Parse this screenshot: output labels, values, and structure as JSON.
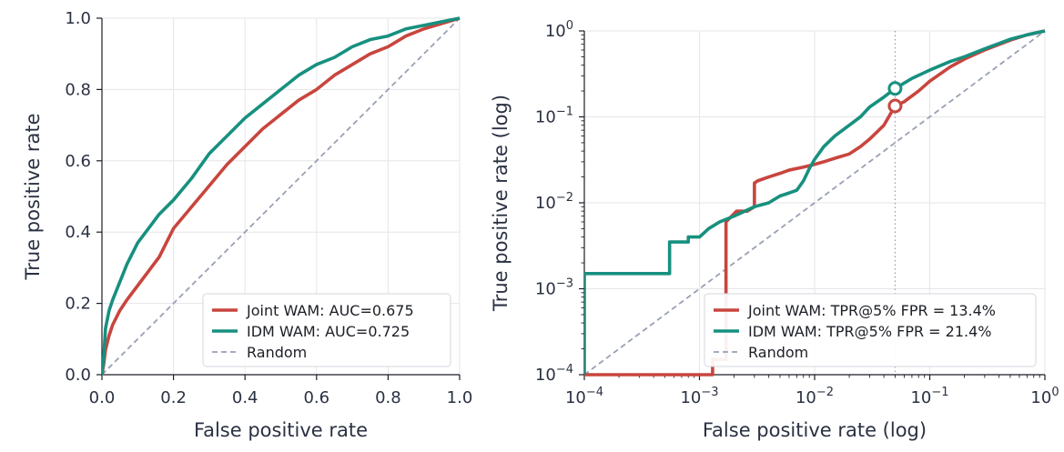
{
  "colors": {
    "joint": "#c8453e",
    "idm": "#17907f",
    "random": "#98a0b3",
    "marker_line": "#9aa0ad"
  },
  "chart_data": [
    {
      "type": "line",
      "scale": "linear",
      "xlabel": "False positive rate",
      "ylabel": "True positive rate",
      "xlim": [
        0,
        1
      ],
      "ylim": [
        0,
        1
      ],
      "xticks": [
        0,
        0.2,
        0.4,
        0.6,
        0.8,
        1.0
      ],
      "xtick_labels": [
        "0.0",
        "0.2",
        "0.4",
        "0.6",
        "0.8",
        "1.0"
      ],
      "yticks": [
        0,
        0.2,
        0.4,
        0.6,
        0.8,
        1.0
      ],
      "ytick_labels": [
        "0.0",
        "0.2",
        "0.4",
        "0.6",
        "0.8",
        "1.0"
      ],
      "grid": true,
      "legend_position": "bottom-right",
      "series": [
        {
          "key": "joint",
          "name": "Joint WAM: AUC=0.675",
          "x": [
            0,
            0.005,
            0.01,
            0.02,
            0.03,
            0.05,
            0.07,
            0.1,
            0.13,
            0.16,
            0.2,
            0.25,
            0.3,
            0.35,
            0.4,
            0.45,
            0.5,
            0.55,
            0.6,
            0.65,
            0.7,
            0.75,
            0.8,
            0.85,
            0.9,
            0.95,
            1.0
          ],
          "y": [
            0,
            0.03,
            0.07,
            0.11,
            0.14,
            0.18,
            0.21,
            0.25,
            0.29,
            0.33,
            0.41,
            0.47,
            0.53,
            0.59,
            0.64,
            0.69,
            0.73,
            0.77,
            0.8,
            0.84,
            0.87,
            0.9,
            0.92,
            0.95,
            0.97,
            0.985,
            1.0
          ]
        },
        {
          "key": "idm",
          "name": "IDM WAM: AUC=0.725",
          "x": [
            0,
            0.005,
            0.01,
            0.02,
            0.03,
            0.05,
            0.07,
            0.1,
            0.13,
            0.16,
            0.2,
            0.25,
            0.3,
            0.35,
            0.4,
            0.45,
            0.5,
            0.55,
            0.6,
            0.65,
            0.7,
            0.75,
            0.8,
            0.85,
            0.9,
            0.95,
            1.0
          ],
          "y": [
            0,
            0.05,
            0.13,
            0.18,
            0.21,
            0.26,
            0.31,
            0.37,
            0.41,
            0.45,
            0.49,
            0.55,
            0.62,
            0.67,
            0.72,
            0.76,
            0.8,
            0.84,
            0.87,
            0.89,
            0.92,
            0.94,
            0.95,
            0.97,
            0.98,
            0.99,
            1.0
          ]
        },
        {
          "key": "random",
          "name": "Random",
          "dashed": true,
          "x": [
            0,
            1
          ],
          "y": [
            0,
            1
          ]
        }
      ]
    },
    {
      "type": "line",
      "scale": "log",
      "xlabel": "False positive rate (log)",
      "ylabel": "True positive rate (log)",
      "xlim": [
        0.0001,
        1
      ],
      "ylim": [
        0.0001,
        1
      ],
      "xticks": [
        0.0001,
        0.001,
        0.01,
        0.1,
        1
      ],
      "xtick_labels": [
        [
          "10",
          "−4"
        ],
        [
          "10",
          "−3"
        ],
        [
          "10",
          "−2"
        ],
        [
          "10",
          "−1"
        ],
        [
          "10",
          "0"
        ]
      ],
      "yticks": [
        0.0001,
        0.001,
        0.01,
        0.1,
        1
      ],
      "ytick_labels": [
        [
          "10",
          "−4"
        ],
        [
          "10",
          "−3"
        ],
        [
          "10",
          "−2"
        ],
        [
          "10",
          "−1"
        ],
        [
          "10",
          "0"
        ]
      ],
      "grid": true,
      "legend_position": "bottom-right",
      "vline_x": 0.05,
      "markers": [
        {
          "key": "joint",
          "x": 0.05,
          "y": 0.134
        },
        {
          "key": "idm",
          "x": 0.05,
          "y": 0.214
        }
      ],
      "series": [
        {
          "key": "joint",
          "name": "Joint WAM: TPR@5% FPR = 13.4%",
          "x": [
            0.0001,
            0.0013,
            0.0013,
            0.0017,
            0.0017,
            0.0021,
            0.0026,
            0.003,
            0.003,
            0.0032,
            0.004,
            0.005,
            0.006,
            0.008,
            0.01,
            0.012,
            0.015,
            0.02,
            0.025,
            0.03,
            0.04,
            0.05,
            0.06,
            0.08,
            0.1,
            0.15,
            0.2,
            0.3,
            0.5,
            0.7,
            1.0
          ],
          "y": [
            0.0001,
            0.0001,
            0.00015,
            0.00015,
            0.006,
            0.008,
            0.008,
            0.009,
            0.017,
            0.018,
            0.02,
            0.022,
            0.024,
            0.026,
            0.028,
            0.03,
            0.033,
            0.037,
            0.045,
            0.055,
            0.08,
            0.134,
            0.15,
            0.2,
            0.26,
            0.38,
            0.47,
            0.6,
            0.78,
            0.9,
            1.0
          ]
        },
        {
          "key": "idm",
          "name": "IDM WAM: TPR@5% FPR = 21.4%",
          "x": [
            0.0001,
            0.0001,
            0.00055,
            0.00055,
            0.0008,
            0.0008,
            0.001,
            0.0012,
            0.0015,
            0.002,
            0.003,
            0.004,
            0.005,
            0.006,
            0.007,
            0.008,
            0.009,
            0.01,
            0.012,
            0.015,
            0.02,
            0.025,
            0.03,
            0.04,
            0.05,
            0.07,
            0.1,
            0.15,
            0.2,
            0.3,
            0.5,
            0.7,
            1.0
          ],
          "y": [
            0.0001,
            0.0015,
            0.0015,
            0.0035,
            0.0035,
            0.004,
            0.004,
            0.005,
            0.006,
            0.007,
            0.009,
            0.01,
            0.012,
            0.013,
            0.014,
            0.018,
            0.025,
            0.032,
            0.045,
            0.06,
            0.08,
            0.1,
            0.13,
            0.17,
            0.214,
            0.28,
            0.35,
            0.44,
            0.5,
            0.62,
            0.8,
            0.9,
            1.0
          ]
        },
        {
          "key": "random",
          "name": "Random",
          "dashed": true,
          "x": [
            0.0001,
            1
          ],
          "y": [
            0.0001,
            1
          ]
        }
      ]
    }
  ]
}
